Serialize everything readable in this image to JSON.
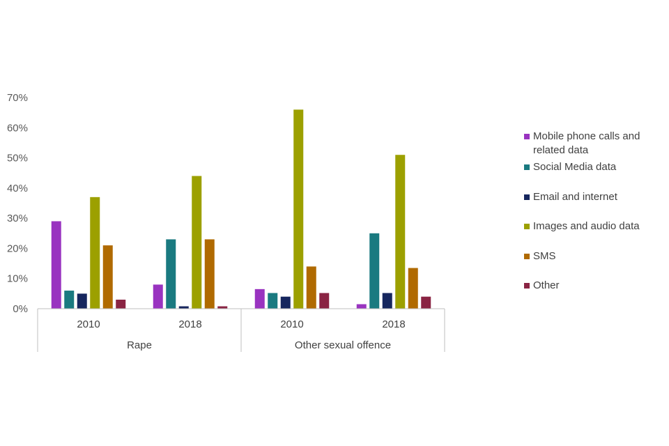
{
  "chart_data": {
    "type": "bar",
    "title": "",
    "xlabel": "",
    "ylabel": "",
    "ylim": [
      0,
      70
    ],
    "yticks": [
      "0%",
      "10%",
      "20%",
      "30%",
      "40%",
      "50%",
      "60%",
      "70%"
    ],
    "groups": [
      {
        "name": "Rape",
        "categories": [
          "2010",
          "2018"
        ]
      },
      {
        "name": "Other sexual offence",
        "categories": [
          "2010",
          "2018"
        ]
      }
    ],
    "legend_position": "right",
    "series": [
      {
        "name": "Mobile phone calls and related data",
        "color": "#9933c0",
        "values": [
          29,
          8,
          6.5,
          1.5
        ]
      },
      {
        "name": "Social Media data",
        "color": "#1a7a80",
        "values": [
          6,
          23,
          5.2,
          25
        ]
      },
      {
        "name": "Email and internet",
        "color": "#16265e",
        "values": [
          5,
          0.8,
          4,
          5.2
        ]
      },
      {
        "name": "Images and audio data",
        "color": "#9ca000",
        "values": [
          37,
          44,
          66,
          51
        ]
      },
      {
        "name": "SMS",
        "color": "#b06a00",
        "values": [
          21,
          23,
          14,
          13.5
        ]
      },
      {
        "name": "Other",
        "color": "#8a2443",
        "values": [
          3,
          0.8,
          5.2,
          4
        ]
      }
    ]
  }
}
